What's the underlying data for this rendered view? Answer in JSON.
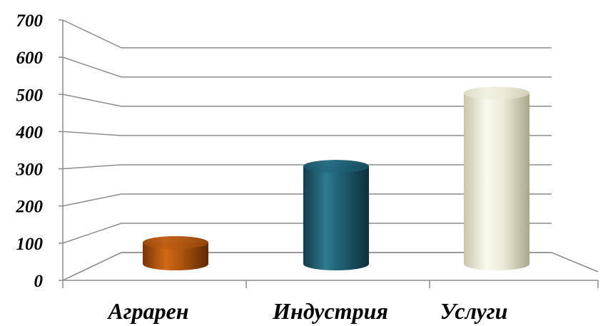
{
  "chart_data": {
    "type": "bar",
    "style": "3d-cylinder",
    "categories": [
      "Аграрен",
      "Индустрия",
      "Услуги"
    ],
    "values": [
      70,
      320,
      560
    ],
    "ylim": [
      0,
      700
    ],
    "yticks": [
      "0",
      "100",
      "200",
      "300",
      "400",
      "500",
      "600",
      "700"
    ],
    "title": "",
    "xlabel": "",
    "ylabel": "",
    "grid": true,
    "legend": "none",
    "colors": [
      "#b4570f",
      "#1f6276",
      "#ecead8"
    ]
  }
}
